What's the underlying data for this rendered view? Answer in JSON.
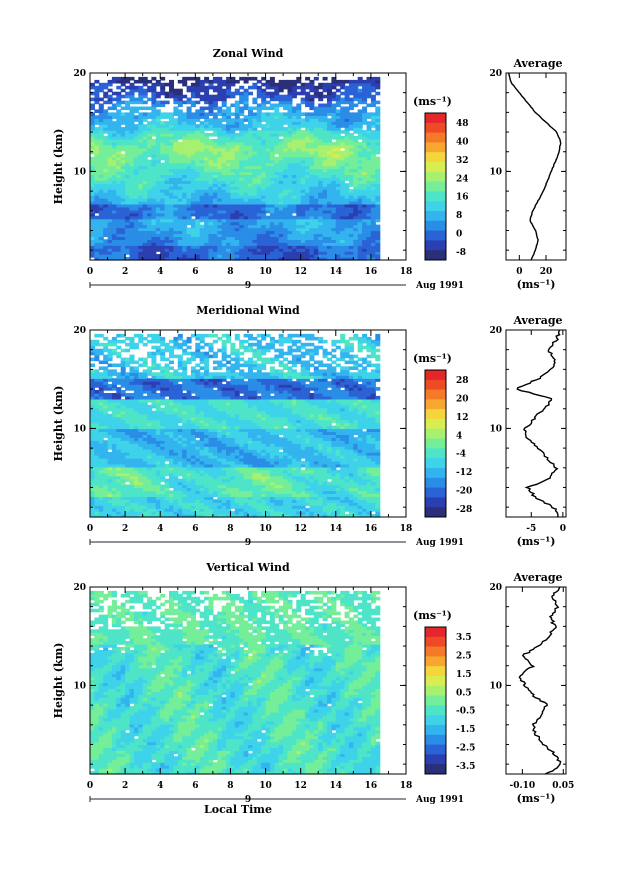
{
  "chart_data": [
    {
      "type": "heatmap",
      "title": "Zonal Wind",
      "ylabel": "Height (km)",
      "y_ticks": [
        "20",
        "10"
      ],
      "x_ticks": [
        "0",
        "2",
        "4",
        "6",
        "8",
        "10",
        "12",
        "14",
        "16",
        "18"
      ],
      "date_label": "9",
      "date_suffix": "Aug 1991",
      "units": "(ms⁻¹)",
      "colorbar_ticks": [
        "48",
        "40",
        "32",
        "24",
        "16",
        "8",
        "0",
        "-8"
      ],
      "colorbar_range": [
        -8,
        52
      ],
      "xlim": [
        0,
        18
      ],
      "ylim": [
        1,
        20
      ],
      "data_extent_x": [
        0,
        16.3
      ],
      "profile": {
        "title": "Average",
        "x_ticks": [
          "0",
          "20"
        ],
        "xlim": [
          -10,
          35
        ],
        "xlabel": "(ms⁻¹)",
        "y_ticks": [
          "20",
          "10"
        ],
        "height": [
          1,
          2,
          3,
          4,
          5,
          6,
          7,
          8,
          9,
          10,
          11,
          12,
          13,
          14,
          15,
          16,
          17,
          18,
          19,
          20
        ],
        "value": [
          9,
          12,
          14,
          12,
          8,
          10,
          14,
          18,
          21,
          24,
          27,
          30,
          31,
          28,
          20,
          12,
          6,
          0,
          -6,
          -8
        ]
      }
    },
    {
      "type": "heatmap",
      "title": "Meridional Wind",
      "ylabel": "Height (km)",
      "y_ticks": [
        "20",
        "10"
      ],
      "x_ticks": [
        "0",
        "2",
        "4",
        "6",
        "8",
        "10",
        "12",
        "14",
        "16",
        "18"
      ],
      "date_label": "9",
      "date_suffix": "Aug 1991",
      "units": "(ms⁻¹)",
      "colorbar_ticks": [
        "28",
        "20",
        "12",
        "4",
        "-4",
        "-12",
        "-20",
        "-28"
      ],
      "colorbar_range": [
        -32,
        32
      ],
      "xlim": [
        0,
        18
      ],
      "ylim": [
        1,
        20
      ],
      "data_extent_x": [
        0,
        16.3
      ],
      "profile": {
        "title": "Average",
        "x_ticks": [
          "-5",
          "0"
        ],
        "xlim": [
          -9,
          0.5
        ],
        "xlabel": "(ms⁻¹)",
        "y_ticks": [
          "20",
          "10"
        ],
        "height": [
          1,
          2,
          3,
          4,
          5,
          6,
          7,
          8,
          9,
          10,
          11,
          12,
          13,
          14,
          15,
          16,
          17,
          18,
          19,
          20
        ],
        "value": [
          -0.5,
          -1.5,
          -4.5,
          -5.5,
          -2.0,
          -1.0,
          -2.5,
          -4.0,
          -5.5,
          -6.0,
          -4.5,
          -3.0,
          -1.5,
          -7.5,
          -4.0,
          -2.0,
          -1.0,
          -2.5,
          -1.0,
          -0.5
        ]
      }
    },
    {
      "type": "heatmap",
      "title": "Vertical Wind",
      "ylabel": "Height (km)",
      "xlabel": "Local Time",
      "y_ticks": [
        "20",
        "10"
      ],
      "x_ticks": [
        "0",
        "2",
        "4",
        "6",
        "8",
        "10",
        "12",
        "14",
        "16",
        "18"
      ],
      "date_label": "9",
      "date_suffix": "Aug 1991",
      "units": "(ms⁻¹)",
      "colorbar_ticks": [
        "3.5",
        "2.5",
        "1.5",
        "0.5",
        "-0.5",
        "-1.5",
        "-2.5",
        "-3.5"
      ],
      "colorbar_range": [
        -4,
        4
      ],
      "xlim": [
        0,
        18
      ],
      "ylim": [
        1,
        20
      ],
      "data_extent_x": [
        0,
        16.3
      ],
      "profile": {
        "title": "Average",
        "x_ticks": [
          "-0.10",
          "0.05"
        ],
        "xlim": [
          -0.16,
          0.06
        ],
        "xlabel": "(ms⁻¹)",
        "y_ticks": [
          "20",
          "10"
        ],
        "height": [
          1,
          2,
          3,
          4,
          5,
          6,
          7,
          8,
          9,
          10,
          11,
          12,
          13,
          14,
          15,
          16,
          17,
          18,
          19,
          20
        ],
        "value": [
          -0.01,
          0.04,
          0.02,
          -0.02,
          -0.05,
          -0.06,
          -0.03,
          -0.01,
          -0.06,
          -0.09,
          -0.11,
          -0.06,
          -0.1,
          -0.04,
          0.0,
          0.02,
          0.0,
          0.03,
          0.01,
          0.04
        ]
      }
    }
  ]
}
